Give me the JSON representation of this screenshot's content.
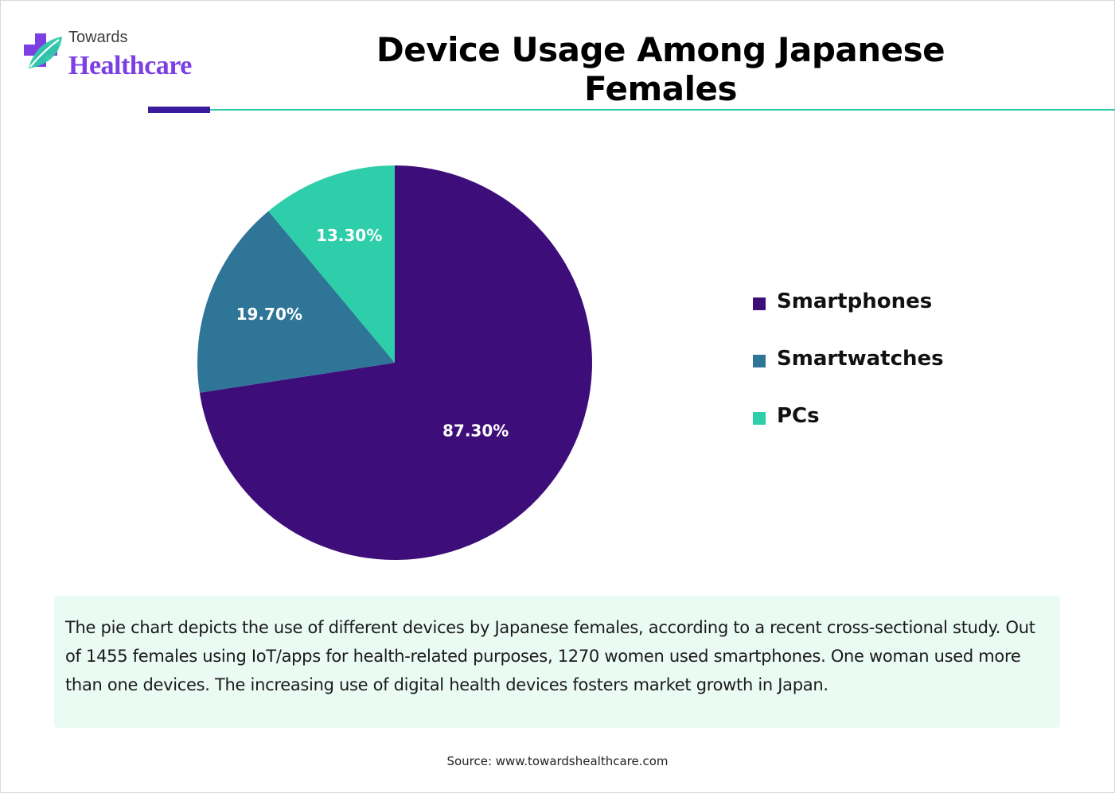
{
  "brand": {
    "line1": "Towards",
    "line2": "Healthcare",
    "icon": "medical-cross-leaf-icon",
    "colors": {
      "cross": "#7b3fe4",
      "leaf": "#2ec9a8"
    }
  },
  "header": {
    "title": "Device Usage Among Japanese Females"
  },
  "colors": {
    "accent_dark": "#3a1b9c",
    "accent_teal": "#2ec9a8",
    "description_bg": "#eafbf4"
  },
  "chart_data": {
    "type": "pie",
    "title": "Device Usage Among Japanese Females",
    "legend_position": "right",
    "slices": [
      {
        "label": "Smartphones",
        "value": 87.3,
        "display": "87.30%",
        "color": "#3d0e7a"
      },
      {
        "label": "Smartwatches",
        "value": 19.7,
        "display": "19.70%",
        "color": "#2e7597"
      },
      {
        "label": "PCs",
        "value": 13.3,
        "display": "13.30%",
        "color": "#2dcea9"
      }
    ]
  },
  "description": {
    "text": "The pie chart depicts the use of different devices by Japanese females, according to a recent cross-sectional study. Out of 1455 females using IoT/apps for health-related purposes, 1270 women used smartphones. One woman used more than one devices. The increasing use of digital health devices fosters market growth in Japan."
  },
  "footer": {
    "source": "Source: www.towardshealthcare.com"
  }
}
